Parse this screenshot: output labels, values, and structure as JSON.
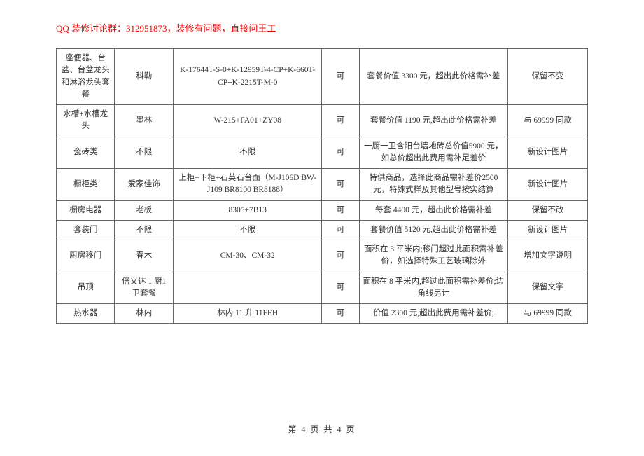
{
  "header": {
    "text": "QQ 装修讨论群：312951873，装修有问题，直接问王工"
  },
  "table": {
    "rows": [
      {
        "c1": "座便器、台盆、台盆龙头和淋浴龙头套餐",
        "c2": "科勒",
        "c3": "K-17644T-S-0+K-12959T-4-CP+K-660T-CP+K-2215T-M-0",
        "c4": "可",
        "c5": "套餐价值 3300 元，超出此价格需补差",
        "c6": "保留不变"
      },
      {
        "c1": "水槽+水槽龙头",
        "c2": "墨林",
        "c3": "W-215+FA01+ZY08",
        "c4": "可",
        "c5": "套餐价值 1190 元,超出此价格需补差",
        "c6": "与 69999 同款"
      },
      {
        "c1": "瓷砖类",
        "c2": "不限",
        "c3": "不限",
        "c4": "可",
        "c5": "一厨一卫含阳台墙地砖总价值5900 元，如总价超出此费用需补足差价",
        "c6": "新设计图片"
      },
      {
        "c1": "橱柜类",
        "c2": "爱家佳饰",
        "c3": "上柜+下柜+石英石台面（M-J106D BW-J109 BR8100 BR8188）",
        "c4": "可",
        "c5": "特供商品，选择此商品需补差价2500 元，特殊式样及其他型号按实结算",
        "c6": "新设计图片"
      },
      {
        "c1": "橱房电器",
        "c2": "老板",
        "c3": "8305+7B13",
        "c4": "可",
        "c5": "每套 4400 元，超出此价格需补差",
        "c6": "保留不改"
      },
      {
        "c1": "套装门",
        "c2": "不限",
        "c3": "不限",
        "c4": "可",
        "c5": "套餐价值 5120 元,超出此价格需补差",
        "c6": "新设计图片"
      },
      {
        "c1": "厨房移门",
        "c2": "春木",
        "c3": "CM-30、CM-32",
        "c4": "可",
        "c5": "面积在 3 平米内;移门超过此面积需补差价，如选择特殊工艺玻璃除外",
        "c6": "增加文字说明"
      },
      {
        "c1": "吊顶",
        "c2": "倍义达 1 厨1 卫套餐",
        "c3": "",
        "c4": "可",
        "c5": "面积在 8 平米内,超过此面积需补差价;边角线另计",
        "c6": "保留文字"
      },
      {
        "c1": "热水器",
        "c2": "林内",
        "c3": "林内 11 升 11FEH",
        "c4": "可",
        "c5": "价值 2300 元,超出此费用需补差价;",
        "c6": "与 69999 同款"
      }
    ]
  },
  "footer": {
    "text": "第 4 页 共 4 页"
  }
}
